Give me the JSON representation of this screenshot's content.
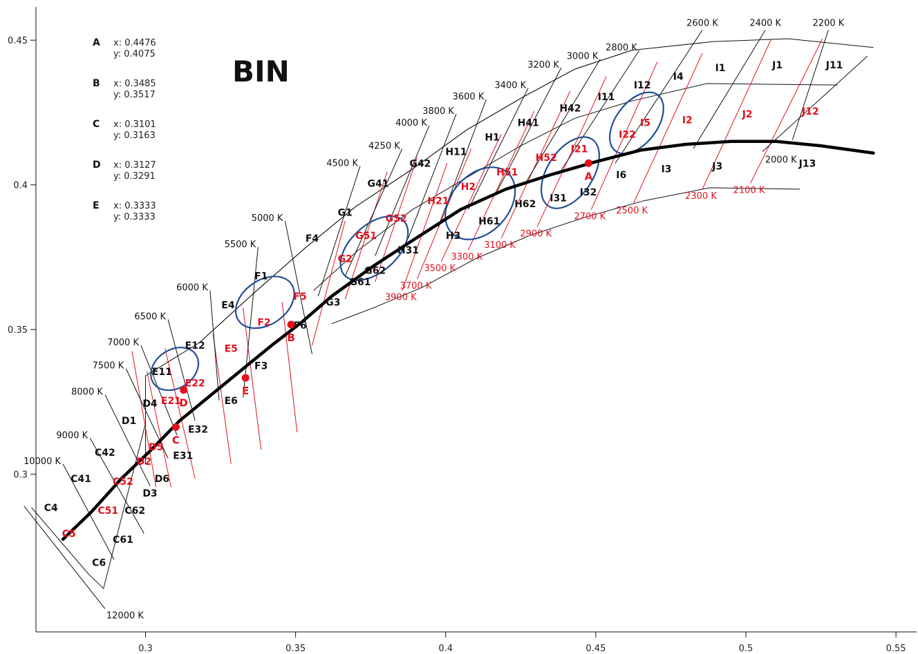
{
  "chart_data": {
    "type": "scatter",
    "title": "BIN",
    "xlabel": "",
    "ylabel": "",
    "xlim": [
      0.2635,
      0.5555
    ],
    "ylim": [
      0.2455,
      0.4615
    ],
    "x_ticks": [
      {
        "v": 0.3,
        "label": "0.3"
      },
      {
        "v": 0.35,
        "label": "0.35"
      },
      {
        "v": 0.4,
        "label": "0.4"
      },
      {
        "v": 0.45,
        "label": "0.45"
      },
      {
        "v": 0.5,
        "label": "0.5"
      },
      {
        "v": 0.55,
        "label": "0.55"
      }
    ],
    "y_ticks": [
      {
        "v": 0.3,
        "label": "0.3"
      },
      {
        "v": 0.35,
        "label": "0.35"
      },
      {
        "v": 0.4,
        "label": "0.4"
      },
      {
        "v": 0.45,
        "label": "0.45"
      }
    ],
    "grid": false,
    "points": [
      {
        "name": "A",
        "label": "A",
        "x": 0.4476,
        "y": 0.4075,
        "x_text": "x: 0.4476",
        "y_text": "y: 0.4075"
      },
      {
        "name": "B",
        "label": "B",
        "x": 0.3485,
        "y": 0.3517,
        "x_text": "x: 0.3485",
        "y_text": "y: 0.3517"
      },
      {
        "name": "C",
        "label": "C",
        "x": 0.3101,
        "y": 0.3163,
        "x_text": "x: 0.3101",
        "y_text": "y: 0.3163"
      },
      {
        "name": "D",
        "label": "D",
        "x": 0.3127,
        "y": 0.3291,
        "x_text": "x: 0.3127",
        "y_text": "y: 0.3291"
      },
      {
        "name": "E",
        "label": "E",
        "x": 0.3333,
        "y": 0.3333,
        "x_text": "x: 0.3333",
        "y_text": "y: 0.3333"
      }
    ],
    "blackbody_locus": [
      [
        0.2725,
        0.2775
      ],
      [
        0.282,
        0.287
      ],
      [
        0.292,
        0.2985
      ],
      [
        0.3015,
        0.308
      ],
      [
        0.3114,
        0.3185
      ],
      [
        0.322,
        0.3275
      ],
      [
        0.3334,
        0.3372
      ],
      [
        0.342,
        0.3445
      ],
      [
        0.352,
        0.3525
      ],
      [
        0.362,
        0.3615
      ],
      [
        0.376,
        0.372
      ],
      [
        0.39,
        0.3815
      ],
      [
        0.405,
        0.3915
      ],
      [
        0.42,
        0.3985
      ],
      [
        0.435,
        0.4035
      ],
      [
        0.45,
        0.408
      ],
      [
        0.465,
        0.412
      ],
      [
        0.48,
        0.414
      ],
      [
        0.495,
        0.415
      ],
      [
        0.51,
        0.415
      ],
      [
        0.525,
        0.4135
      ],
      [
        0.5425,
        0.411
      ]
    ],
    "outer_boundary": [
      [
        0.262,
        0.2885
      ],
      [
        0.281,
        0.2655
      ],
      [
        0.286,
        0.2605
      ],
      [
        0.3,
        0.3175
      ],
      [
        0.3,
        0.334
      ],
      [
        0.318,
        0.3455
      ],
      [
        0.336,
        0.3625
      ],
      [
        0.353,
        0.378
      ],
      [
        0.37,
        0.3925
      ],
      [
        0.389,
        0.4055
      ],
      [
        0.407,
        0.419
      ],
      [
        0.426,
        0.4305
      ],
      [
        0.443,
        0.44
      ],
      [
        0.462,
        0.4465
      ],
      [
        0.489,
        0.4495
      ],
      [
        0.514,
        0.4505
      ],
      [
        0.5425,
        0.4475
      ]
    ],
    "inner_lines": [
      [
        [
          0.3,
          0.334
        ],
        [
          0.3,
          0.317
        ],
        [
          0.3,
          0.3035
        ]
      ],
      [
        [
          0.318,
          0.3455
        ],
        [
          0.336,
          0.3625
        ],
        [
          0.353,
          0.378
        ],
        [
          0.37,
          0.3925
        ],
        [
          0.389,
          0.4055
        ],
        [
          0.407,
          0.419
        ],
        [
          0.426,
          0.4305
        ],
        [
          0.443,
          0.44
        ],
        [
          0.462,
          0.4465
        ]
      ],
      [
        [
          0.356,
          0.3635
        ],
        [
          0.371,
          0.3775
        ],
        [
          0.389,
          0.3915
        ],
        [
          0.407,
          0.4025
        ],
        [
          0.425,
          0.4135
        ],
        [
          0.443,
          0.423
        ],
        [
          0.462,
          0.429
        ],
        [
          0.487,
          0.435
        ],
        [
          0.5305,
          0.4345
        ]
      ],
      [
        [
          0.362,
          0.352
        ],
        [
          0.376,
          0.3575
        ],
        [
          0.392,
          0.3645
        ],
        [
          0.41,
          0.3745
        ],
        [
          0.428,
          0.3825
        ],
        [
          0.447,
          0.389
        ],
        [
          0.466,
          0.3945
        ],
        [
          0.488,
          0.399
        ],
        [
          0.518,
          0.3985
        ]
      ]
    ],
    "cct_lines_black": [
      {
        "label": "12000 K",
        "x1": 0.2595,
        "y1": 0.289,
        "x2": 0.2865,
        "y2": 0.2535
      },
      {
        "label": "10000 K",
        "x1": 0.2725,
        "y1": 0.3035,
        "x2": 0.2895,
        "y2": 0.2705
      },
      {
        "label": "9000 K",
        "x1": 0.2815,
        "y1": 0.3125,
        "x2": 0.2995,
        "y2": 0.2795
      },
      {
        "label": "8000 K",
        "x1": 0.2865,
        "y1": 0.3275,
        "x2": 0.3015,
        "y2": 0.296
      },
      {
        "label": "7500 K",
        "x1": 0.2935,
        "y1": 0.3365,
        "x2": 0.3075,
        "y2": 0.3055
      },
      {
        "label": "7000 K",
        "x1": 0.2985,
        "y1": 0.3445,
        "x2": 0.3105,
        "y2": 0.3135
      },
      {
        "label": "6500 K",
        "x1": 0.3075,
        "y1": 0.3535,
        "x2": 0.3165,
        "y2": 0.3185
      },
      {
        "label": "6000 K",
        "x1": 0.3215,
        "y1": 0.3635,
        "x2": 0.3245,
        "y2": 0.3255
      },
      {
        "label": "5500 K",
        "x1": 0.3375,
        "y1": 0.3785,
        "x2": 0.3325,
        "y2": 0.3265
      },
      {
        "label": "5000 K",
        "x1": 0.3465,
        "y1": 0.3875,
        "x2": 0.3555,
        "y2": 0.3415
      },
      {
        "label": "4500 K",
        "x1": 0.3715,
        "y1": 0.4065,
        "x2": 0.3575,
        "y2": 0.3615
      },
      {
        "label": "4250 K",
        "x1": 0.3855,
        "y1": 0.4125,
        "x2": 0.3665,
        "y2": 0.3685
      },
      {
        "label": "4000 K",
        "x1": 0.3945,
        "y1": 0.4205,
        "x2": 0.3765,
        "y2": 0.3755
      },
      {
        "label": "3800 K",
        "x1": 0.4035,
        "y1": 0.4245,
        "x2": 0.3875,
        "y2": 0.3815
      },
      {
        "label": "3600 K",
        "x1": 0.4135,
        "y1": 0.4295,
        "x2": 0.3975,
        "y2": 0.3855
      },
      {
        "label": "3400 K",
        "x1": 0.4275,
        "y1": 0.4335,
        "x2": 0.4075,
        "y2": 0.3915
      },
      {
        "label": "3200 K",
        "x1": 0.4385,
        "y1": 0.4405,
        "x2": 0.4165,
        "y2": 0.3965
      },
      {
        "label": "3000 K",
        "x1": 0.4515,
        "y1": 0.4435,
        "x2": 0.4265,
        "y2": 0.4005
      },
      {
        "label": "2800 K",
        "x1": 0.4645,
        "y1": 0.4465,
        "x2": 0.4375,
        "y2": 0.4035
      },
      {
        "label": "2600 K",
        "x1": 0.4855,
        "y1": 0.4535,
        "x2": 0.4565,
        "y2": 0.4075
      },
      {
        "label": "2400 K",
        "x1": 0.5065,
        "y1": 0.4535,
        "x2": 0.4825,
        "y2": 0.4125
      },
      {
        "label": "2200 K",
        "x1": 0.5275,
        "y1": 0.4535,
        "x2": 0.5155,
        "y2": 0.4155
      },
      {
        "label": "2000 K",
        "x1": 0.5405,
        "y1": 0.4445,
        "x2": 0.5055,
        "y2": 0.4115
      }
    ],
    "cct_lines_red": [
      {
        "label": "3900 K",
        "x1": 0.3855,
        "y1": 0.3635,
        "x2": 0.4005,
        "y2": 0.4075
      },
      {
        "label": "3700 K",
        "x1": 0.3905,
        "y1": 0.3675,
        "x2": 0.4085,
        "y2": 0.4125
      },
      {
        "label": "3500 K",
        "x1": 0.3985,
        "y1": 0.3735,
        "x2": 0.4185,
        "y2": 0.4175
      },
      {
        "label": "3300 K",
        "x1": 0.4075,
        "y1": 0.3775,
        "x2": 0.4295,
        "y2": 0.4255
      },
      {
        "label": "3100 K",
        "x1": 0.4185,
        "y1": 0.3815,
        "x2": 0.4415,
        "y2": 0.4325
      },
      {
        "label": "2900 K",
        "x1": 0.4305,
        "y1": 0.3855,
        "x2": 0.4535,
        "y2": 0.4375
      },
      {
        "label": "2700 K",
        "x1": 0.4485,
        "y1": 0.3915,
        "x2": 0.4705,
        "y2": 0.4425
      },
      {
        "label": "2500 K",
        "x1": 0.4625,
        "y1": 0.3935,
        "x2": 0.4855,
        "y2": 0.4455
      },
      {
        "label": "2300 K",
        "x1": 0.4855,
        "y1": 0.3985,
        "x2": 0.5085,
        "y2": 0.4505
      },
      {
        "label": "2100 K",
        "x1": 0.5015,
        "y1": 0.4005,
        "x2": 0.5255,
        "y2": 0.4505
      }
    ],
    "red_lines_unlabeled": [
      [
        0.3035,
        0.2955,
        0.2955,
        0.3425
      ],
      [
        0.3085,
        0.2955,
        0.3005,
        0.3355
      ],
      [
        0.3165,
        0.2985,
        0.3065,
        0.3435
      ],
      [
        0.3285,
        0.3035,
        0.3225,
        0.3485
      ],
      [
        0.3385,
        0.3085,
        0.3325,
        0.3575
      ],
      [
        0.3505,
        0.3145,
        0.3455,
        0.3595
      ],
      [
        0.3555,
        0.3445,
        0.3665,
        0.3875
      ],
      [
        0.3665,
        0.3605,
        0.3805,
        0.4045
      ],
      [
        0.3765,
        0.3665,
        0.3905,
        0.4095
      ]
    ],
    "bins": [
      {
        "label": "J11",
        "x": 0.5295,
        "y": 0.4415,
        "color": "black"
      },
      {
        "label": "J1",
        "x": 0.5105,
        "y": 0.4415,
        "color": "black"
      },
      {
        "label": "I1",
        "x": 0.4915,
        "y": 0.4405,
        "color": "black"
      },
      {
        "label": "I4",
        "x": 0.4775,
        "y": 0.4375,
        "color": "black"
      },
      {
        "label": "I12",
        "x": 0.4655,
        "y": 0.4345,
        "color": "black"
      },
      {
        "label": "I11",
        "x": 0.4535,
        "y": 0.4305,
        "color": "black"
      },
      {
        "label": "H42",
        "x": 0.4415,
        "y": 0.4265,
        "color": "black"
      },
      {
        "label": "H41",
        "x": 0.4275,
        "y": 0.4215,
        "color": "black"
      },
      {
        "label": "H1",
        "x": 0.4155,
        "y": 0.4165,
        "color": "black"
      },
      {
        "label": "H11",
        "x": 0.4035,
        "y": 0.4115,
        "color": "black"
      },
      {
        "label": "G42",
        "x": 0.3915,
        "y": 0.4075,
        "color": "black"
      },
      {
        "label": "G41",
        "x": 0.3775,
        "y": 0.4005,
        "color": "black"
      },
      {
        "label": "G1",
        "x": 0.3665,
        "y": 0.3905,
        "color": "black"
      },
      {
        "label": "F4",
        "x": 0.3555,
        "y": 0.3815,
        "color": "black"
      },
      {
        "label": "F1",
        "x": 0.3385,
        "y": 0.3685,
        "color": "black"
      },
      {
        "label": "E4",
        "x": 0.3275,
        "y": 0.3585,
        "color": "black"
      },
      {
        "label": "E12",
        "x": 0.3165,
        "y": 0.3445,
        "color": "black"
      },
      {
        "label": "E11",
        "x": 0.3055,
        "y": 0.3355,
        "color": "black"
      },
      {
        "label": "D4",
        "x": 0.3015,
        "y": 0.3245,
        "color": "black"
      },
      {
        "label": "D1",
        "x": 0.2945,
        "y": 0.3185,
        "color": "black"
      },
      {
        "label": "C42",
        "x": 0.2865,
        "y": 0.3075,
        "color": "black"
      },
      {
        "label": "C41",
        "x": 0.2785,
        "y": 0.2985,
        "color": "black"
      },
      {
        "label": "C4",
        "x": 0.2685,
        "y": 0.2885,
        "color": "black"
      },
      {
        "label": "C5",
        "x": 0.2745,
        "y": 0.2795,
        "color": "red"
      },
      {
        "label": "C51",
        "x": 0.2875,
        "y": 0.2875,
        "color": "red"
      },
      {
        "label": "C52",
        "x": 0.2925,
        "y": 0.2975,
        "color": "red"
      },
      {
        "label": "C61",
        "x": 0.2925,
        "y": 0.2775,
        "color": "black"
      },
      {
        "label": "C62",
        "x": 0.2965,
        "y": 0.2875,
        "color": "black"
      },
      {
        "label": "C6",
        "x": 0.2845,
        "y": 0.2695,
        "color": "black"
      },
      {
        "label": "D3",
        "x": 0.3015,
        "y": 0.2935,
        "color": "black"
      },
      {
        "label": "D6",
        "x": 0.3055,
        "y": 0.2985,
        "color": "black"
      },
      {
        "label": "D2",
        "x": 0.2995,
        "y": 0.3045,
        "color": "red"
      },
      {
        "label": "D5",
        "x": 0.3035,
        "y": 0.3095,
        "color": "red"
      },
      {
        "label": "E21",
        "x": 0.3085,
        "y": 0.3255,
        "color": "red"
      },
      {
        "label": "E22",
        "x": 0.3165,
        "y": 0.3315,
        "color": "red"
      },
      {
        "label": "E31",
        "x": 0.3125,
        "y": 0.3065,
        "color": "black"
      },
      {
        "label": "E32",
        "x": 0.3175,
        "y": 0.3155,
        "color": "black"
      },
      {
        "label": "E5",
        "x": 0.3285,
        "y": 0.3435,
        "color": "red"
      },
      {
        "label": "E6",
        "x": 0.3285,
        "y": 0.3255,
        "color": "black"
      },
      {
        "label": "F3",
        "x": 0.3385,
        "y": 0.3375,
        "color": "black"
      },
      {
        "label": "F2",
        "x": 0.3395,
        "y": 0.3525,
        "color": "red"
      },
      {
        "label": "F5",
        "x": 0.3515,
        "y": 0.3615,
        "color": "red"
      },
      {
        "label": "F6",
        "x": 0.3515,
        "y": 0.3515,
        "color": "black"
      },
      {
        "label": "G3",
        "x": 0.3625,
        "y": 0.3595,
        "color": "black"
      },
      {
        "label": "G2",
        "x": 0.3665,
        "y": 0.3745,
        "color": "red"
      },
      {
        "label": "G61",
        "x": 0.3715,
        "y": 0.3665,
        "color": "black"
      },
      {
        "label": "G62",
        "x": 0.3765,
        "y": 0.3705,
        "color": "black"
      },
      {
        "label": "G51",
        "x": 0.3735,
        "y": 0.3825,
        "color": "red"
      },
      {
        "label": "G52",
        "x": 0.3835,
        "y": 0.3885,
        "color": "red"
      },
      {
        "label": "H31",
        "x": 0.3875,
        "y": 0.3775,
        "color": "black"
      },
      {
        "label": "H3",
        "x": 0.4025,
        "y": 0.3825,
        "color": "black"
      },
      {
        "label": "H21",
        "x": 0.3975,
        "y": 0.3945,
        "color": "red"
      },
      {
        "label": "H2",
        "x": 0.4075,
        "y": 0.3995,
        "color": "red"
      },
      {
        "label": "H61",
        "x": 0.4145,
        "y": 0.3875,
        "color": "black"
      },
      {
        "label": "H51",
        "x": 0.4205,
        "y": 0.4045,
        "color": "red"
      },
      {
        "label": "H62",
        "x": 0.4265,
        "y": 0.3935,
        "color": "black"
      },
      {
        "label": "H52",
        "x": 0.4335,
        "y": 0.4095,
        "color": "red"
      },
      {
        "label": "I31",
        "x": 0.4375,
        "y": 0.3955,
        "color": "black"
      },
      {
        "label": "I32",
        "x": 0.4475,
        "y": 0.3975,
        "color": "black"
      },
      {
        "label": "I21",
        "x": 0.4445,
        "y": 0.4125,
        "color": "red"
      },
      {
        "label": "I22",
        "x": 0.4605,
        "y": 0.4175,
        "color": "red"
      },
      {
        "label": "I6",
        "x": 0.4585,
        "y": 0.4035,
        "color": "black"
      },
      {
        "label": "I5",
        "x": 0.4665,
        "y": 0.4215,
        "color": "red"
      },
      {
        "label": "I3",
        "x": 0.4735,
        "y": 0.4055,
        "color": "black"
      },
      {
        "label": "I2",
        "x": 0.4805,
        "y": 0.4225,
        "color": "red"
      },
      {
        "label": "J3",
        "x": 0.4905,
        "y": 0.4065,
        "color": "black"
      },
      {
        "label": "J2",
        "x": 0.5005,
        "y": 0.4245,
        "color": "red"
      },
      {
        "label": "J13",
        "x": 0.5205,
        "y": 0.4075,
        "color": "black"
      },
      {
        "label": "J12",
        "x": 0.5215,
        "y": 0.4255,
        "color": "red"
      }
    ],
    "ellipses": [
      {
        "cx": 0.3097,
        "cy": 0.3364,
        "rx": 0.0085,
        "ry": 0.0064,
        "angle": -34
      },
      {
        "cx": 0.3398,
        "cy": 0.3594,
        "rx": 0.0107,
        "ry": 0.0074,
        "angle": -35
      },
      {
        "cx": 0.3762,
        "cy": 0.3781,
        "rx": 0.0134,
        "ry": 0.0078,
        "angle": -42
      },
      {
        "cx": 0.4115,
        "cy": 0.3936,
        "rx": 0.0137,
        "ry": 0.0096,
        "angle": -48
      },
      {
        "cx": 0.4415,
        "cy": 0.4042,
        "rx": 0.0133,
        "ry": 0.0076,
        "angle": -57
      },
      {
        "cx": 0.4636,
        "cy": 0.4214,
        "rx": 0.0117,
        "ry": 0.0069,
        "angle": -53
      }
    ],
    "colors": {
      "black": "#111111",
      "red": "#e3101c",
      "ellipse": "#1f4e96",
      "locus": "#000000"
    }
  }
}
